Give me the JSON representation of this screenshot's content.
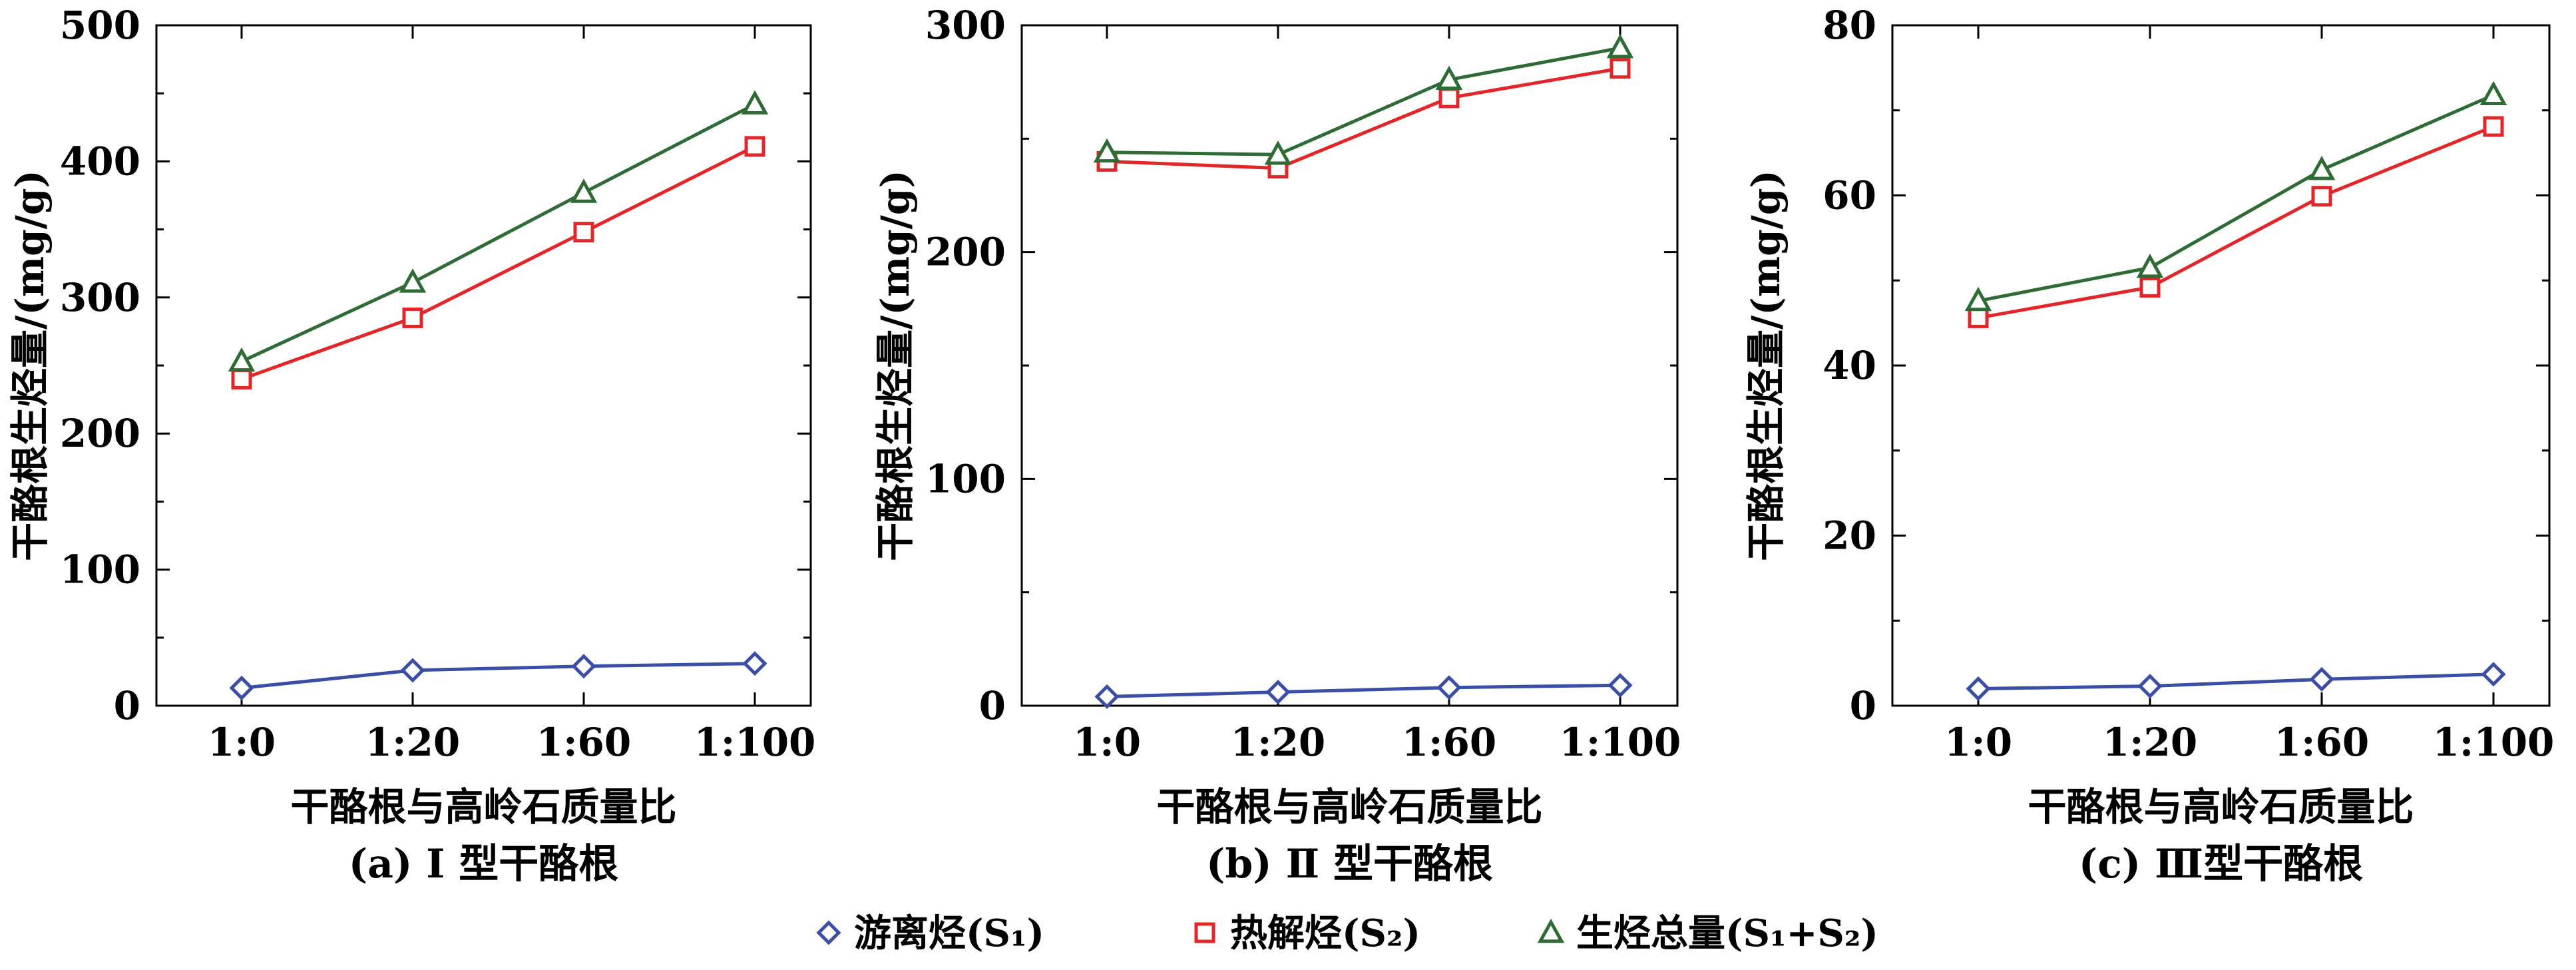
{
  "legend": [
    {
      "label": "游离烃(S₁)",
      "color": "#3a4ea6",
      "marker": "diamond"
    },
    {
      "label": "热解烃(S₂)",
      "color": "#e3262a",
      "marker": "square"
    },
    {
      "label": "生烃总量(S₁+S₂)",
      "color": "#2f6b35",
      "marker": "triangle"
    }
  ],
  "chart_data": [
    {
      "type": "line",
      "caption": "(a) Ⅰ 型干酪根",
      "xlabel": "干酪根与高岭石质量比",
      "ylabel": "干酪根生烃量/(mg/g)",
      "categories": [
        "1:0",
        "1:20",
        "1:60",
        "1:100"
      ],
      "ylim": [
        0,
        500
      ],
      "yticks": [
        0,
        100,
        200,
        300,
        400,
        500
      ],
      "series": [
        {
          "name": "游离烃(S₁)",
          "values": [
            13,
            26,
            29,
            31
          ]
        },
        {
          "name": "热解烃(S₂)",
          "values": [
            240,
            285,
            348,
            411
          ]
        },
        {
          "name": "生烃总量(S₁+S₂)",
          "values": [
            253,
            311,
            377,
            442
          ]
        }
      ]
    },
    {
      "type": "line",
      "caption": "(b) Ⅱ 型干酪根",
      "xlabel": "干酪根与高岭石质量比",
      "ylabel": "干酪根生烃量/(mg/g)",
      "categories": [
        "1:0",
        "1:20",
        "1:60",
        "1:100"
      ],
      "ylim": [
        0,
        300
      ],
      "yticks": [
        0,
        100,
        200,
        300
      ],
      "series": [
        {
          "name": "游离烃(S₁)",
          "values": [
            4,
            6,
            8,
            9
          ]
        },
        {
          "name": "热解烃(S₂)",
          "values": [
            240,
            237,
            268,
            281
          ]
        },
        {
          "name": "生烃总量(S₁+S₂)",
          "values": [
            244,
            243,
            276,
            290
          ]
        }
      ]
    },
    {
      "type": "line",
      "caption": "(c) Ⅲ型干酪根",
      "xlabel": "干酪根与高岭石质量比",
      "ylabel": "干酪根生烃量/(mg/g)",
      "categories": [
        "1:0",
        "1:20",
        "1:60",
        "1:100"
      ],
      "ylim": [
        0,
        80
      ],
      "yticks": [
        0,
        20,
        40,
        60,
        80
      ],
      "series": [
        {
          "name": "游离烃(S₁)",
          "values": [
            2.0,
            2.3,
            3.1,
            3.7
          ]
        },
        {
          "name": "热解烃(S₂)",
          "values": [
            45.6,
            49.2,
            59.9,
            68.1
          ]
        },
        {
          "name": "生烃总量(S₁+S₂)",
          "values": [
            47.6,
            51.5,
            63.0,
            71.8
          ]
        }
      ]
    }
  ]
}
